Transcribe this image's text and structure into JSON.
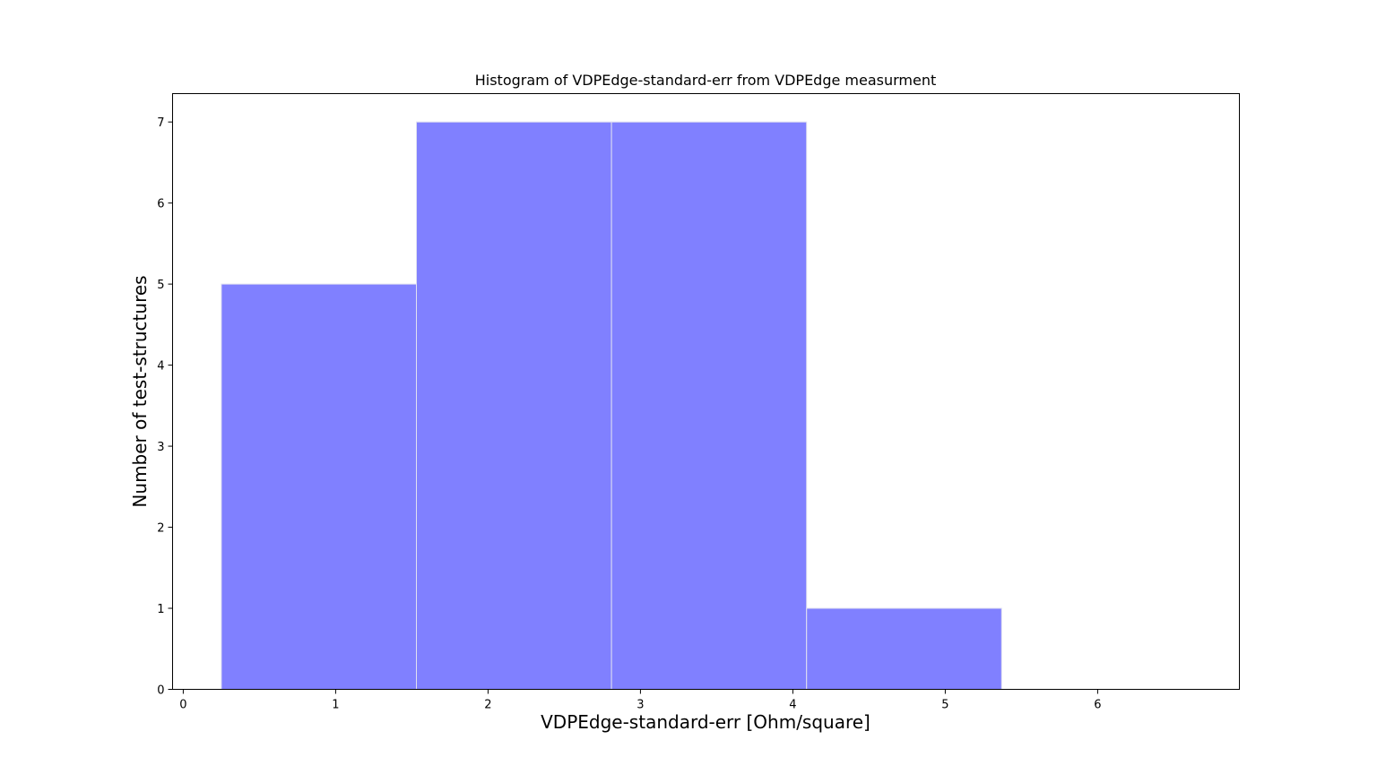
{
  "chart_data": {
    "type": "bar",
    "title": "Histogram of VDPEdge-standard-err from VDPEdge measurment",
    "xlabel": "VDPEdge-standard-err [Ohm/square]",
    "ylabel": "Number of test-structures",
    "bins": [
      {
        "start": 0.25,
        "end": 1.53,
        "count": 5
      },
      {
        "start": 1.53,
        "end": 2.81,
        "count": 7
      },
      {
        "start": 2.81,
        "end": 4.09,
        "count": 7
      },
      {
        "start": 4.09,
        "end": 5.37,
        "count": 1
      }
    ],
    "xlim": [
      -0.07,
      6.93
    ],
    "ylim": [
      0,
      7.35
    ],
    "xticks": [
      0,
      1,
      2,
      3,
      4,
      5,
      6
    ],
    "yticks": [
      0,
      1,
      2,
      3,
      4,
      5,
      6,
      7
    ],
    "bar_color": "#8080ff",
    "edge_color": "#e0e0f0",
    "grid": false,
    "legend": "none"
  }
}
